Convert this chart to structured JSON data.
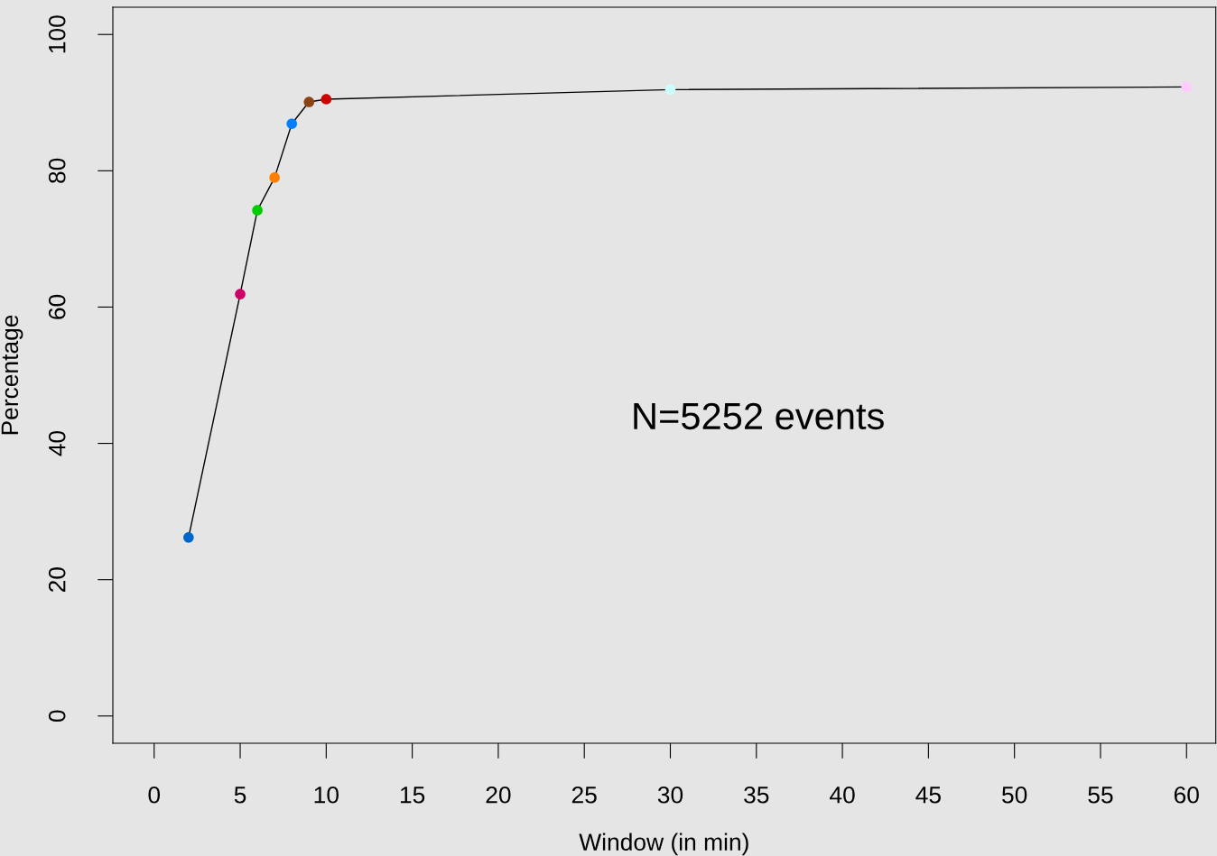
{
  "chart_data": {
    "type": "line",
    "xlabel": "Window (in min)",
    "ylabel": "Percentage",
    "x": [
      2,
      5,
      6,
      7,
      8,
      9,
      10,
      30,
      60
    ],
    "series": [
      {
        "color": "#000000",
        "colors": [
          "#0066cc",
          "#cc0066",
          "#00cc00",
          "#ff8000",
          "#0080ff",
          "#8b4513",
          "#cc0000",
          "#ccffff",
          "#ffccff"
        ],
        "values": [
          26.2,
          61.9,
          74.2,
          79.0,
          86.9,
          90.1,
          90.5,
          91.9,
          92.3
        ]
      }
    ],
    "marker": "circle",
    "line_style": "solid",
    "xlim": [
      -2.4,
      61.7
    ],
    "ylim": [
      -4,
      104
    ],
    "xticks": [
      0,
      5,
      10,
      15,
      20,
      25,
      30,
      35,
      40,
      45,
      50,
      55,
      60
    ],
    "yticks": [
      0,
      20,
      40,
      60,
      80,
      100
    ],
    "grid": false,
    "legend": false,
    "annotations": [
      "N=5252 events"
    ]
  }
}
